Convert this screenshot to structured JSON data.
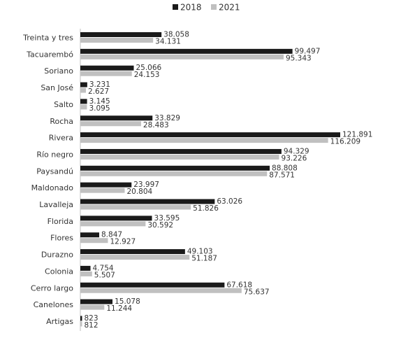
{
  "chart_data": {
    "type": "bar",
    "orientation": "horizontal",
    "legend_position": "top",
    "grid": false,
    "xlim": [
      0,
      130
    ],
    "categories": [
      "Treinta y tres",
      "Tacuarembó",
      "Soriano",
      "San José",
      "Salto",
      "Rocha",
      "Rivera",
      "Río negro",
      "Paysandú",
      "Maldonado",
      "Lavalleja",
      "Florida",
      "Flores",
      "Durazno",
      "Colonia",
      "Cerro largo",
      "Canelones",
      "Artigas"
    ],
    "series": [
      {
        "name": "2018",
        "color": "#1a1a1a",
        "values": [
          38.058,
          99.497,
          25.066,
          3.231,
          3.145,
          33.829,
          121.891,
          94.329,
          88.808,
          23.997,
          63.026,
          33.595,
          8.847,
          49.103,
          4.754,
          67.618,
          15.078,
          0.823
        ],
        "labels": [
          "38.058",
          "99.497",
          "25.066",
          "3.231",
          "3.145",
          "33.829",
          "121.891",
          "94.329",
          "88.808",
          "23.997",
          "63.026",
          "33.595",
          "8.847",
          "49.103",
          "4.754",
          "67.618",
          "15.078",
          "823"
        ]
      },
      {
        "name": "2021",
        "color": "#c0c0c0",
        "values": [
          34.131,
          95.343,
          24.153,
          2.627,
          3.095,
          28.483,
          116.209,
          93.226,
          87.571,
          20.804,
          51.826,
          30.592,
          12.927,
          51.187,
          5.507,
          75.637,
          11.244,
          0.812
        ],
        "labels": [
          "34.131",
          "95.343",
          "24.153",
          "2.627",
          "3.095",
          "28.483",
          "116.209",
          "93.226",
          "87.571",
          "20.804",
          "51.826",
          "30.592",
          "12.927",
          "51.187",
          "5.507",
          "75.637",
          "11.244",
          "812"
        ]
      }
    ]
  }
}
